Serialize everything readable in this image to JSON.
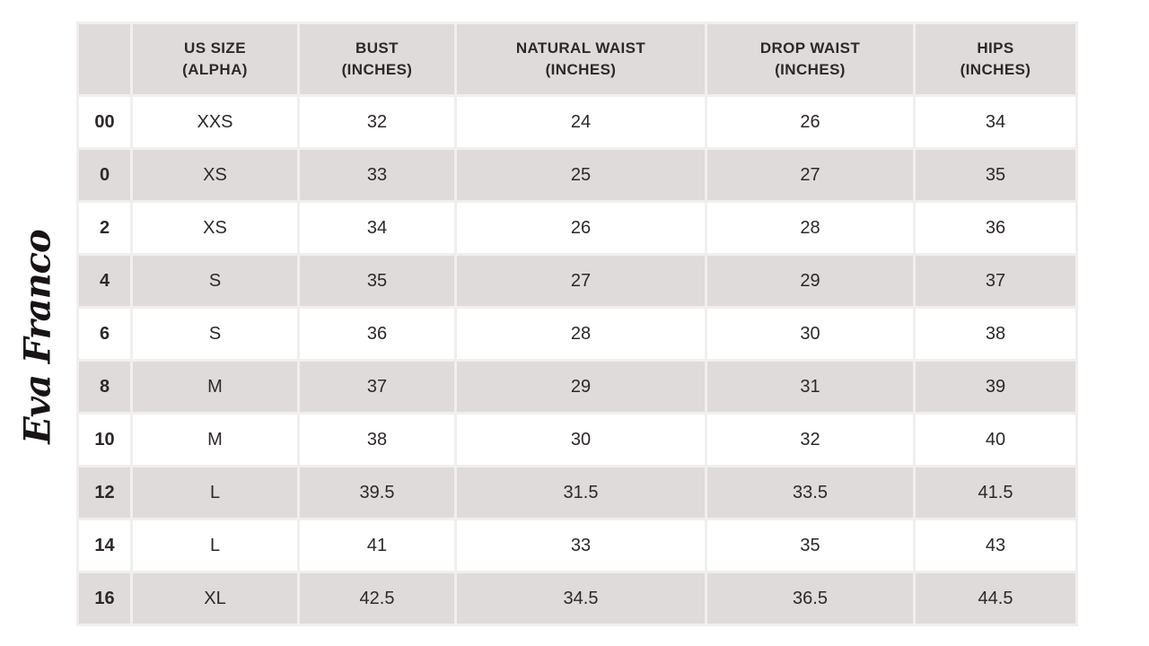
{
  "brand": {
    "logo_text": "Eva Franco"
  },
  "colors": {
    "page_bg": "#ffffff",
    "header_bg": "#dfdbda",
    "stripe_bg": "#dfdbda",
    "grid_gap": "#f1efee",
    "text": "#2d282a",
    "logo_ink": "#181314"
  },
  "table": {
    "headers": [
      [
        ""
      ],
      [
        "US SIZE",
        "(ALPHA)"
      ],
      [
        "BUST",
        "(INCHES)"
      ],
      [
        "NATURAL WAIST",
        "(INCHES)"
      ],
      [
        "DROP WAIST",
        "(INCHES)"
      ],
      [
        "HIPS",
        "(INCHES)"
      ]
    ],
    "rows": [
      {
        "us_size": "00",
        "alpha": "XXS",
        "bust": "32",
        "natural_waist": "24",
        "drop_waist": "26",
        "hips": "34"
      },
      {
        "us_size": "0",
        "alpha": "XS",
        "bust": "33",
        "natural_waist": "25",
        "drop_waist": "27",
        "hips": "35"
      },
      {
        "us_size": "2",
        "alpha": "XS",
        "bust": "34",
        "natural_waist": "26",
        "drop_waist": "28",
        "hips": "36"
      },
      {
        "us_size": "4",
        "alpha": "S",
        "bust": "35",
        "natural_waist": "27",
        "drop_waist": "29",
        "hips": "37"
      },
      {
        "us_size": "6",
        "alpha": "S",
        "bust": "36",
        "natural_waist": "28",
        "drop_waist": "30",
        "hips": "38"
      },
      {
        "us_size": "8",
        "alpha": "M",
        "bust": "37",
        "natural_waist": "29",
        "drop_waist": "31",
        "hips": "39"
      },
      {
        "us_size": "10",
        "alpha": "M",
        "bust": "38",
        "natural_waist": "30",
        "drop_waist": "32",
        "hips": "40"
      },
      {
        "us_size": "12",
        "alpha": "L",
        "bust": "39.5",
        "natural_waist": "31.5",
        "drop_waist": "33.5",
        "hips": "41.5"
      },
      {
        "us_size": "14",
        "alpha": "L",
        "bust": "41",
        "natural_waist": "33",
        "drop_waist": "35",
        "hips": "43"
      },
      {
        "us_size": "16",
        "alpha": "XL",
        "bust": "42.5",
        "natural_waist": "34.5",
        "drop_waist": "36.5",
        "hips": "44.5"
      }
    ]
  },
  "chart_data": {
    "type": "table",
    "columns": [
      "",
      "US SIZE (ALPHA)",
      "BUST (INCHES)",
      "NATURAL WAIST (INCHES)",
      "DROP WAIST (INCHES)",
      "HIPS (INCHES)"
    ],
    "rows": [
      [
        "00",
        "XXS",
        32,
        24,
        26,
        34
      ],
      [
        "0",
        "XS",
        33,
        25,
        27,
        35
      ],
      [
        "2",
        "XS",
        34,
        26,
        28,
        36
      ],
      [
        "4",
        "S",
        35,
        27,
        29,
        37
      ],
      [
        "6",
        "S",
        36,
        28,
        30,
        38
      ],
      [
        "8",
        "M",
        37,
        29,
        31,
        39
      ],
      [
        "10",
        "M",
        38,
        30,
        32,
        40
      ],
      [
        "12",
        "L",
        39.5,
        31.5,
        33.5,
        41.5
      ],
      [
        "14",
        "L",
        41,
        33,
        35,
        43
      ],
      [
        "16",
        "XL",
        42.5,
        34.5,
        36.5,
        44.5
      ]
    ],
    "layout": {
      "striped": true,
      "header_band": true,
      "logo_position": "left-vertical"
    }
  }
}
